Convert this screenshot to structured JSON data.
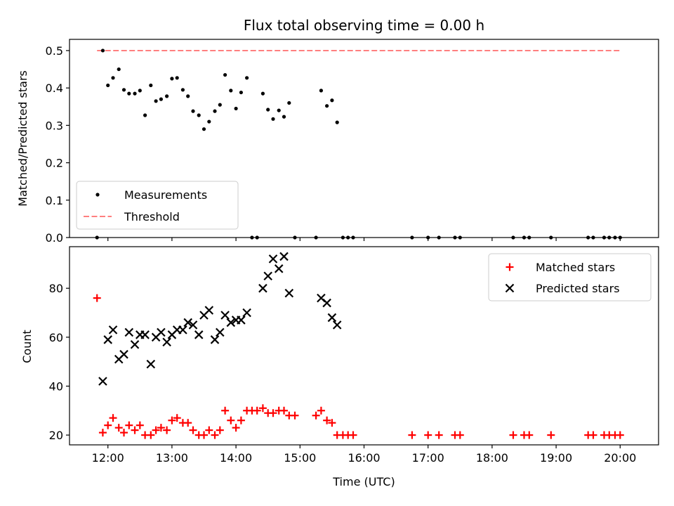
{
  "chart_data": [
    {
      "type": "scatter",
      "title": "Flux total observing time = 0.00 h",
      "xlabel": "",
      "ylabel": "Matched/Predicted stars",
      "xlim": [
        11.4,
        20.6
      ],
      "ylim": [
        0,
        0.53
      ],
      "yticks": [
        0.0,
        0.1,
        0.2,
        0.3,
        0.4,
        0.5
      ],
      "ytick_labels": [
        "0.0",
        "0.1",
        "0.2",
        "0.3",
        "0.4",
        "0.5"
      ],
      "xticks": [
        12,
        13,
        14,
        15,
        16,
        17,
        18,
        19,
        20
      ],
      "legend_position": "lower-left",
      "colors": {
        "measurements": "#000000",
        "threshold": "#ff7f7f"
      },
      "series": [
        {
          "name": "Measurements",
          "points": [
            [
              11.83,
              0.0
            ],
            [
              11.92,
              0.5
            ],
            [
              12.0,
              0.407
            ],
            [
              12.08,
              0.427
            ],
            [
              12.17,
              0.45
            ],
            [
              12.25,
              0.395
            ],
            [
              12.33,
              0.385
            ],
            [
              12.42,
              0.385
            ],
            [
              12.5,
              0.393
            ],
            [
              12.58,
              0.327
            ],
            [
              12.67,
              0.407
            ],
            [
              12.75,
              0.365
            ],
            [
              12.83,
              0.37
            ],
            [
              12.92,
              0.378
            ],
            [
              13.0,
              0.425
            ],
            [
              13.08,
              0.427
            ],
            [
              13.17,
              0.395
            ],
            [
              13.25,
              0.378
            ],
            [
              13.33,
              0.338
            ],
            [
              13.42,
              0.327
            ],
            [
              13.5,
              0.29
            ],
            [
              13.58,
              0.31
            ],
            [
              13.67,
              0.338
            ],
            [
              13.75,
              0.355
            ],
            [
              13.83,
              0.435
            ],
            [
              13.92,
              0.393
            ],
            [
              14.0,
              0.345
            ],
            [
              14.08,
              0.388
            ],
            [
              14.17,
              0.427
            ],
            [
              14.25,
              0.0
            ],
            [
              14.33,
              0.0
            ],
            [
              14.42,
              0.385
            ],
            [
              14.5,
              0.342
            ],
            [
              14.58,
              0.317
            ],
            [
              14.67,
              0.34
            ],
            [
              14.75,
              0.323
            ],
            [
              14.83,
              0.36
            ],
            [
              14.92,
              0.0
            ],
            [
              15.25,
              0.0
            ],
            [
              15.33,
              0.393
            ],
            [
              15.42,
              0.352
            ],
            [
              15.5,
              0.367
            ],
            [
              15.58,
              0.308
            ],
            [
              15.67,
              0.0
            ],
            [
              15.75,
              0.0
            ],
            [
              15.83,
              0.0
            ],
            [
              16.75,
              0.0
            ],
            [
              17.0,
              0.0
            ],
            [
              17.17,
              0.0
            ],
            [
              17.42,
              0.0
            ],
            [
              17.5,
              0.0
            ],
            [
              18.33,
              0.0
            ],
            [
              18.5,
              0.0
            ],
            [
              18.58,
              0.0
            ],
            [
              18.92,
              0.0
            ],
            [
              19.5,
              0.0
            ],
            [
              19.58,
              0.0
            ],
            [
              19.75,
              0.0
            ],
            [
              19.83,
              0.0
            ],
            [
              19.92,
              0.0
            ],
            [
              20.0,
              0.0
            ]
          ]
        },
        {
          "name": "Threshold",
          "style": "dashed-line",
          "points": [
            [
              11.83,
              0.5
            ],
            [
              20.0,
              0.5
            ]
          ]
        }
      ]
    },
    {
      "type": "scatter",
      "title": "",
      "xlabel": "Time (UTC)",
      "ylabel": "Count",
      "xlim": [
        11.4,
        20.6
      ],
      "ylim": [
        16,
        97
      ],
      "yticks": [
        20,
        40,
        60,
        80
      ],
      "ytick_labels": [
        "20",
        "40",
        "60",
        "80"
      ],
      "xticks": [
        12,
        13,
        14,
        15,
        16,
        17,
        18,
        19,
        20
      ],
      "xtick_labels": [
        "12:00",
        "13:00",
        "14:00",
        "15:00",
        "16:00",
        "17:00",
        "18:00",
        "19:00",
        "20:00"
      ],
      "legend_position": "top-right",
      "colors": {
        "matched": "#ff0000",
        "predicted": "#000000"
      },
      "series": [
        {
          "name": "Matched stars",
          "marker": "plus",
          "points": [
            [
              11.83,
              76
            ],
            [
              11.92,
              21
            ],
            [
              12.0,
              24
            ],
            [
              12.08,
              27
            ],
            [
              12.17,
              23
            ],
            [
              12.25,
              21
            ],
            [
              12.33,
              24
            ],
            [
              12.42,
              22
            ],
            [
              12.5,
              24
            ],
            [
              12.58,
              20
            ],
            [
              12.67,
              20
            ],
            [
              12.75,
              22
            ],
            [
              12.83,
              23
            ],
            [
              12.92,
              22
            ],
            [
              13.0,
              26
            ],
            [
              13.08,
              27
            ],
            [
              13.17,
              25
            ],
            [
              13.25,
              25
            ],
            [
              13.33,
              22
            ],
            [
              13.42,
              20
            ],
            [
              13.5,
              20
            ],
            [
              13.58,
              22
            ],
            [
              13.67,
              20
            ],
            [
              13.75,
              22
            ],
            [
              13.83,
              30
            ],
            [
              13.92,
              26
            ],
            [
              14.0,
              23
            ],
            [
              14.08,
              26
            ],
            [
              14.17,
              30
            ],
            [
              14.25,
              30
            ],
            [
              14.33,
              30
            ],
            [
              14.42,
              31
            ],
            [
              14.5,
              29
            ],
            [
              14.58,
              29
            ],
            [
              14.67,
              30
            ],
            [
              14.75,
              30
            ],
            [
              14.83,
              28
            ],
            [
              14.92,
              28
            ],
            [
              15.25,
              28
            ],
            [
              15.33,
              30
            ],
            [
              15.42,
              26
            ],
            [
              15.5,
              25
            ],
            [
              15.58,
              20
            ],
            [
              15.67,
              20
            ],
            [
              15.75,
              20
            ],
            [
              15.83,
              20
            ],
            [
              16.75,
              20
            ],
            [
              17.0,
              20
            ],
            [
              17.17,
              20
            ],
            [
              17.42,
              20
            ],
            [
              17.5,
              20
            ],
            [
              18.33,
              20
            ],
            [
              18.5,
              20
            ],
            [
              18.58,
              20
            ],
            [
              18.92,
              20
            ],
            [
              19.5,
              20
            ],
            [
              19.58,
              20
            ],
            [
              19.75,
              20
            ],
            [
              19.83,
              20
            ],
            [
              19.92,
              20
            ],
            [
              20.0,
              20
            ]
          ]
        },
        {
          "name": "Predicted stars",
          "marker": "x",
          "points": [
            [
              11.92,
              42
            ],
            [
              12.0,
              59
            ],
            [
              12.08,
              63
            ],
            [
              12.17,
              51
            ],
            [
              12.25,
              53
            ],
            [
              12.33,
              62
            ],
            [
              12.42,
              57
            ],
            [
              12.5,
              61
            ],
            [
              12.58,
              61
            ],
            [
              12.67,
              49
            ],
            [
              12.75,
              60
            ],
            [
              12.83,
              62
            ],
            [
              12.92,
              58
            ],
            [
              13.0,
              61
            ],
            [
              13.08,
              63
            ],
            [
              13.17,
              63
            ],
            [
              13.25,
              66
            ],
            [
              13.33,
              65
            ],
            [
              13.42,
              61
            ],
            [
              13.5,
              69
            ],
            [
              13.58,
              71
            ],
            [
              13.67,
              59
            ],
            [
              13.75,
              62
            ],
            [
              13.83,
              69
            ],
            [
              13.92,
              66
            ],
            [
              14.0,
              67
            ],
            [
              14.08,
              67
            ],
            [
              14.17,
              70
            ],
            [
              14.42,
              80
            ],
            [
              14.5,
              85
            ],
            [
              14.58,
              92
            ],
            [
              14.67,
              88
            ],
            [
              14.75,
              93
            ],
            [
              14.83,
              78
            ],
            [
              15.33,
              76
            ],
            [
              15.42,
              74
            ],
            [
              15.5,
              68
            ],
            [
              15.58,
              65
            ]
          ]
        }
      ]
    }
  ]
}
